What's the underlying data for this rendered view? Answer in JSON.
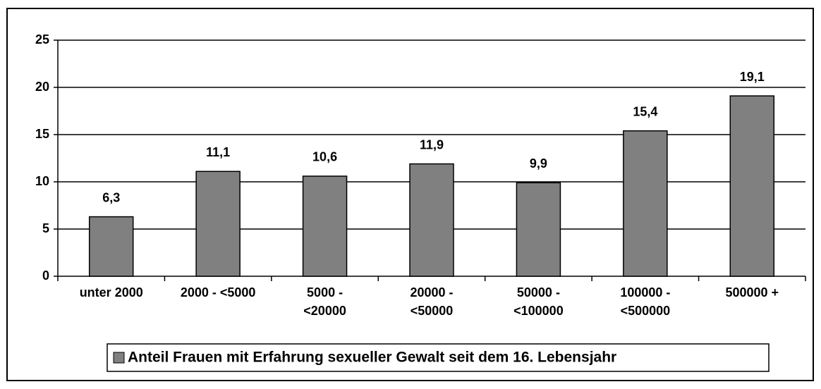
{
  "chart_data": {
    "type": "bar",
    "categories": [
      "unter 2000",
      "2000 - <5000",
      "5000 -\n<20000",
      "20000 -\n<50000",
      "50000 -\n<100000",
      "100000 -\n<500000",
      "500000 +"
    ],
    "series": [
      {
        "name": "Anteil Frauen mit Erfahrung sexueller Gewalt seit dem 16. Lebensjahr",
        "color": "#808080",
        "values": [
          6.3,
          11.1,
          10.6,
          11.9,
          9.9,
          15.4,
          19.1
        ],
        "value_labels": [
          "6,3",
          "11,1",
          "10,6",
          "11,9",
          "9,9",
          "15,4",
          "19,1"
        ]
      }
    ],
    "ylim": [
      0,
      25
    ],
    "yticks": [
      0,
      5,
      10,
      15,
      20,
      25
    ],
    "grid": true
  }
}
